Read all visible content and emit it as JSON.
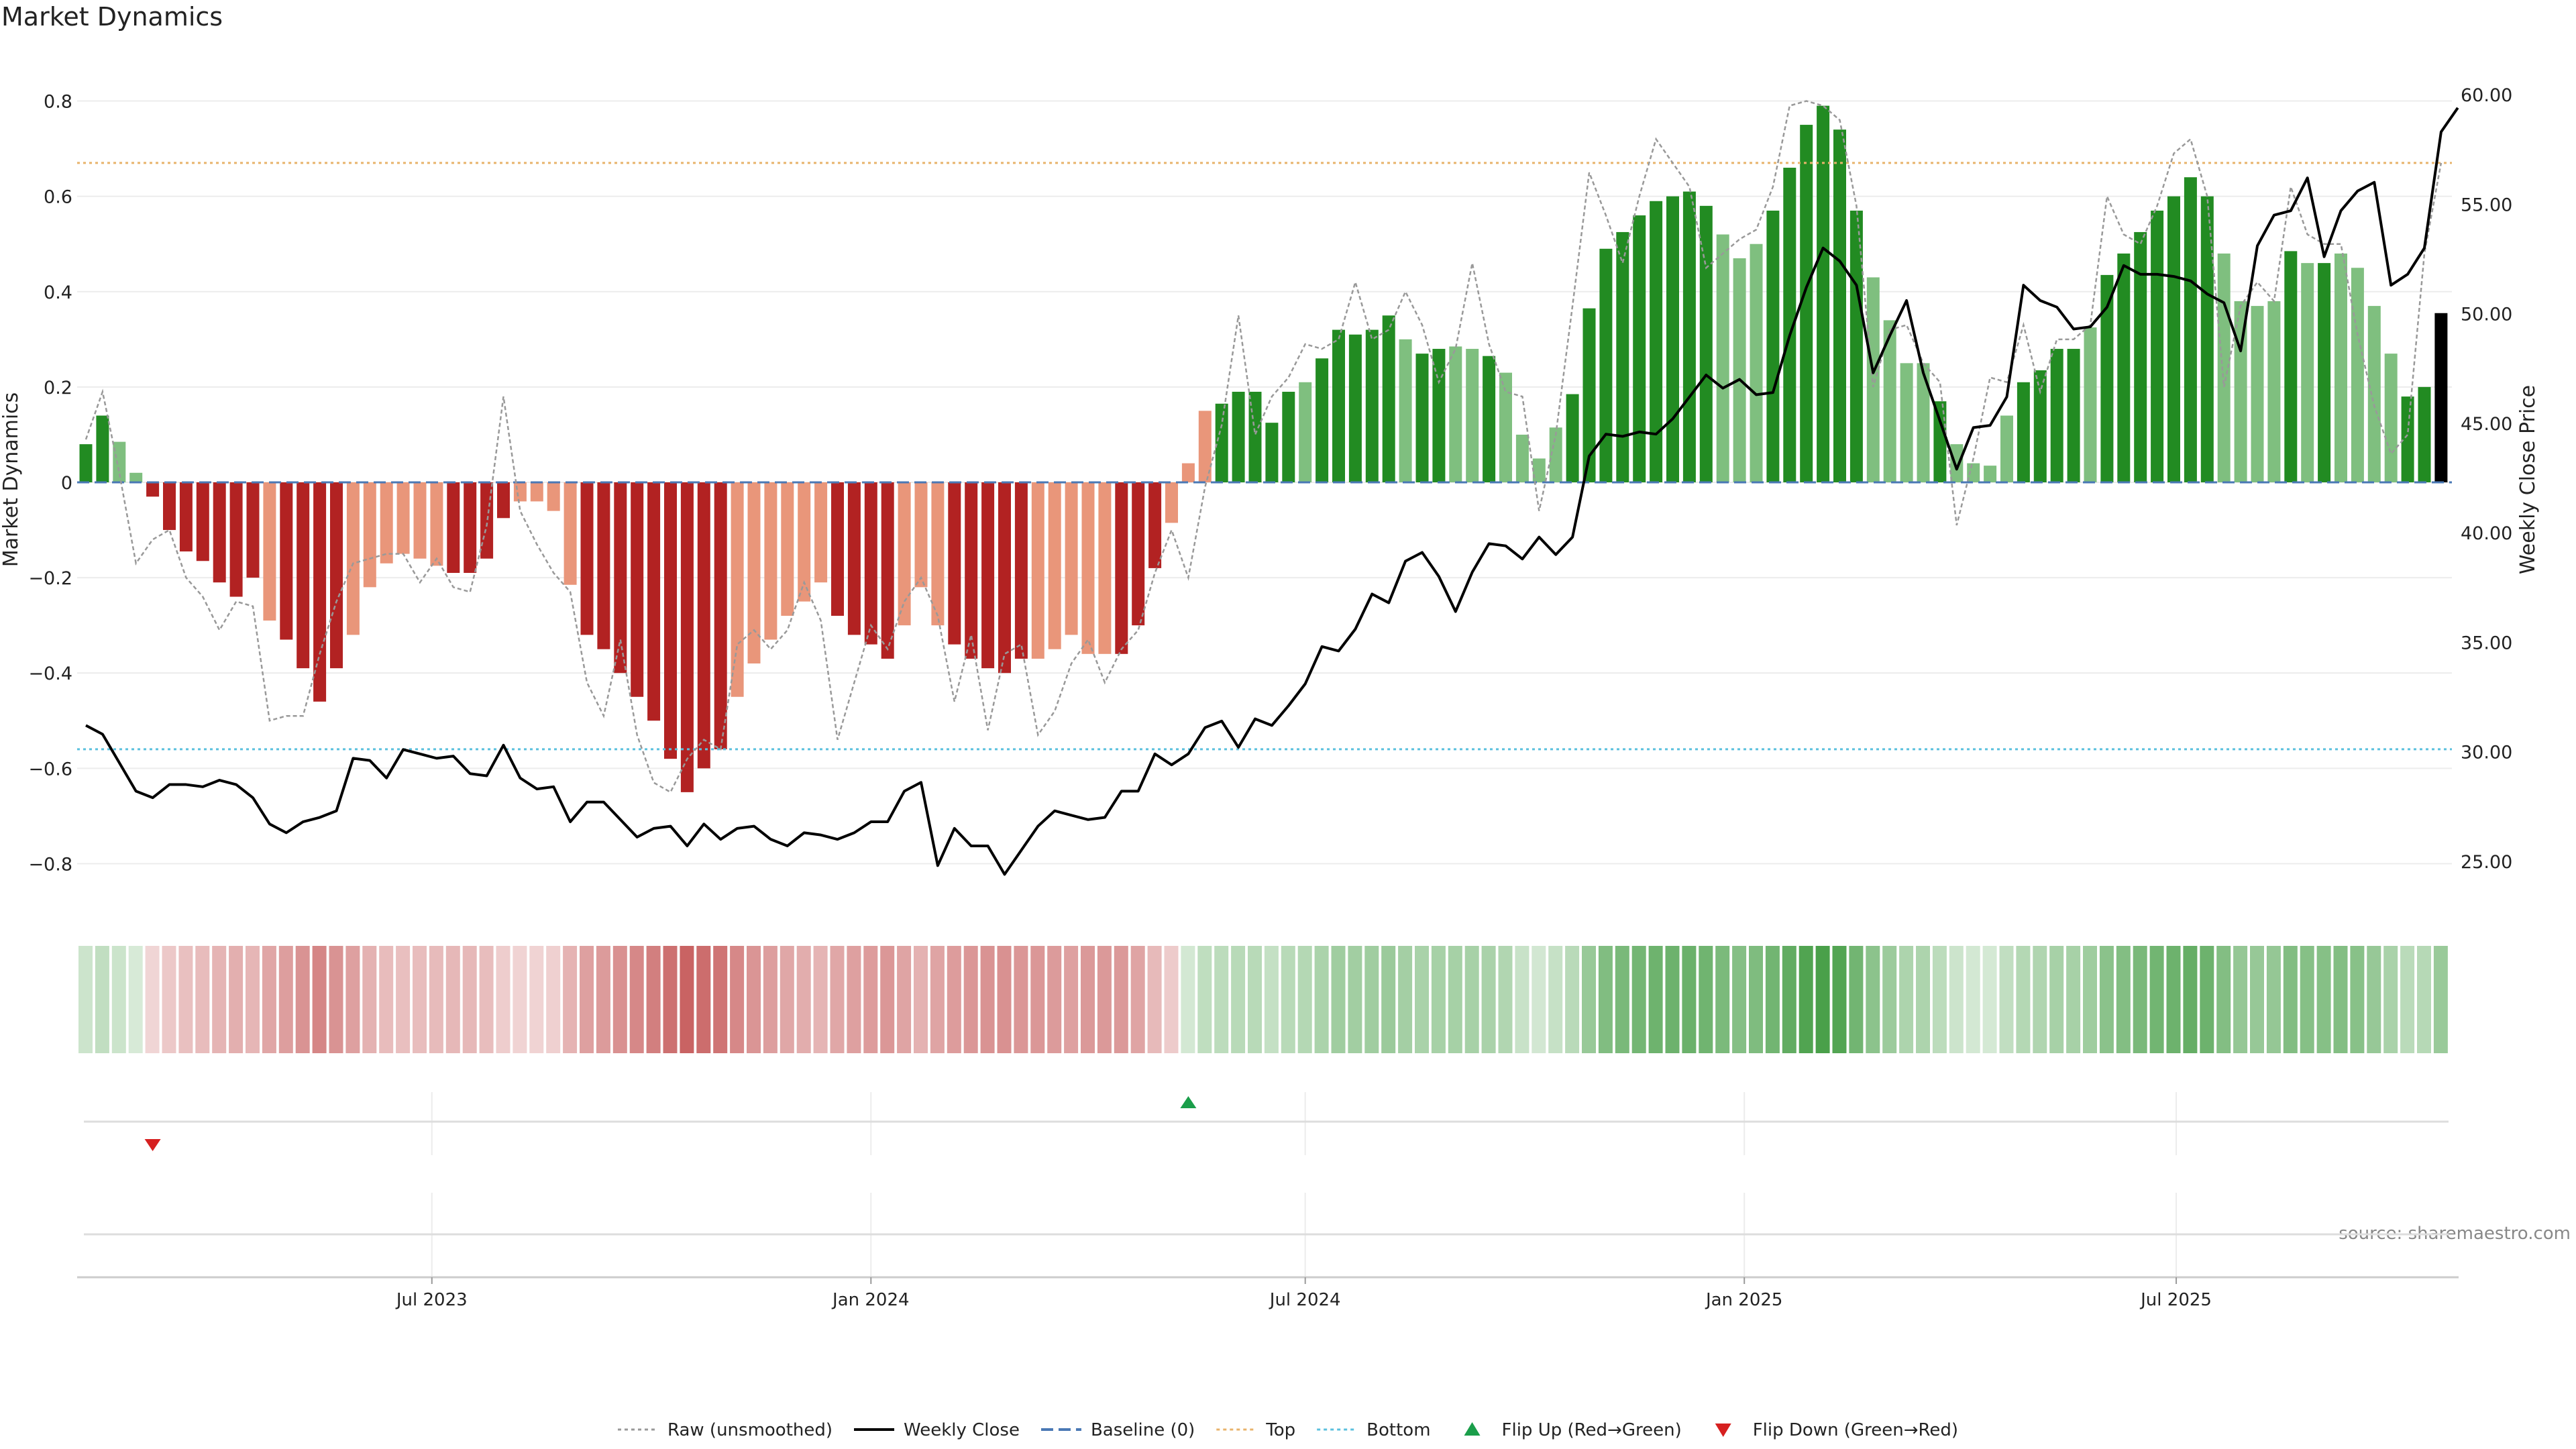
{
  "title": "Market Dynamics",
  "source": "source: sharemaestro.com",
  "colors": {
    "strong_green": "#228B22",
    "light_green": "#7fbf7f",
    "strong_red": "#b22222",
    "light_red": "#e9967a",
    "close_line": "#000000",
    "raw_line": "#999999",
    "baseline": "#4a78b5",
    "top_line": "#e8b36b",
    "bottom_line": "#5bc0de",
    "flip_up": "#1a9e4a",
    "flip_down": "#d62020"
  },
  "chart_data": {
    "type": "bar",
    "x_start": "2023-02-06",
    "x_step_days": 7,
    "x_ticks": [
      "Jul 2023",
      "Jan 2024",
      "Jul 2024",
      "Jan 2025",
      "Jul 2025"
    ],
    "x_tick_dates": [
      "2023-07-01",
      "2024-01-01",
      "2024-07-01",
      "2025-01-01",
      "2025-07-01"
    ],
    "left_axis": {
      "label": "Market Dynamics",
      "range": [
        -0.85,
        0.85
      ],
      "ticks": [
        -0.8,
        -0.6,
        -0.4,
        -0.2,
        0,
        0.2,
        0.4,
        0.6,
        0.8
      ],
      "tick_labels": [
        "−0.8",
        "−0.6",
        "−0.4",
        "−0.2",
        "0",
        "0.2",
        "0.4",
        "0.6",
        "0.8"
      ]
    },
    "right_axis": {
      "label": "Weekly Close Price",
      "range": [
        23.8,
        60.8
      ],
      "ticks": [
        25,
        30,
        35,
        40,
        45,
        50,
        55,
        60
      ],
      "tick_labels": [
        "25.00",
        "30.00",
        "35.00",
        "40.00",
        "45.00",
        "50.00",
        "55.00",
        "60.00"
      ]
    },
    "top_level": 0.67,
    "bottom_level": -0.56,
    "bar_color_codes": [
      "G",
      "G",
      "g",
      "g",
      "R",
      "R",
      "R",
      "R",
      "R",
      "R",
      "R",
      "r",
      "R",
      "R",
      "R",
      "R",
      "r",
      "r",
      "r",
      "r",
      "r",
      "r",
      "R",
      "R",
      "R",
      "R",
      "r",
      "r",
      "r",
      "r",
      "R",
      "R",
      "R",
      "R",
      "R",
      "R",
      "R",
      "R",
      "R",
      "r",
      "r",
      "r",
      "r",
      "r",
      "r",
      "R",
      "R",
      "R",
      "R",
      "r",
      "r",
      "r",
      "R",
      "R",
      "R",
      "R",
      "R",
      "r",
      "r",
      "r",
      "r",
      "r",
      "R",
      "R",
      "R",
      "r",
      "r",
      "r",
      "G",
      "G",
      "G",
      "G",
      "G",
      "g",
      "G",
      "G",
      "G",
      "G",
      "G",
      "g",
      "G",
      "G",
      "g",
      "g",
      "G",
      "g",
      "g",
      "g",
      "g",
      "G",
      "G",
      "G",
      "G",
      "G",
      "G",
      "G",
      "G",
      "G",
      "g",
      "g",
      "g",
      "G",
      "G",
      "G",
      "G",
      "G",
      "G",
      "g",
      "g",
      "g",
      "g",
      "G",
      "g",
      "g",
      "g",
      "g",
      "G",
      "G",
      "G",
      "G",
      "g",
      "G",
      "G",
      "G",
      "G",
      "G",
      "G",
      "G",
      "g",
      "g",
      "g",
      "g",
      "G",
      "g",
      "G",
      "g",
      "g",
      "g",
      "g",
      "G",
      "G"
    ],
    "bars": [
      0.08,
      0.14,
      0.085,
      0.02,
      -0.03,
      -0.1,
      -0.145,
      -0.165,
      -0.21,
      -0.24,
      -0.2,
      -0.29,
      -0.33,
      -0.39,
      -0.46,
      -0.39,
      -0.32,
      -0.22,
      -0.17,
      -0.15,
      -0.16,
      -0.175,
      -0.19,
      -0.19,
      -0.16,
      -0.075,
      -0.04,
      -0.04,
      -0.06,
      -0.215,
      -0.32,
      -0.35,
      -0.4,
      -0.45,
      -0.5,
      -0.58,
      -0.65,
      -0.6,
      -0.56,
      -0.45,
      -0.38,
      -0.33,
      -0.28,
      -0.25,
      -0.21,
      -0.28,
      -0.32,
      -0.34,
      -0.37,
      -0.3,
      -0.22,
      -0.3,
      -0.34,
      -0.37,
      -0.39,
      -0.4,
      -0.37,
      -0.37,
      -0.35,
      -0.32,
      -0.36,
      -0.36,
      -0.36,
      -0.3,
      -0.18,
      -0.085,
      0.04,
      0.15,
      0.165,
      0.19,
      0.19,
      0.125,
      0.19,
      0.21,
      0.26,
      0.32,
      0.31,
      0.32,
      0.35,
      0.3,
      0.27,
      0.28,
      0.285,
      0.28,
      0.265,
      0.23,
      0.1,
      0.05,
      0.115,
      0.185,
      0.365,
      0.49,
      0.525,
      0.56,
      0.59,
      0.6,
      0.61,
      0.58,
      0.52,
      0.47,
      0.5,
      0.57,
      0.66,
      0.75,
      0.79,
      0.74,
      0.57,
      0.43,
      0.34,
      0.25,
      0.25,
      0.17,
      0.08,
      0.04,
      0.035,
      0.14,
      0.21,
      0.235,
      0.28,
      0.28,
      0.325,
      0.435,
      0.48,
      0.525,
      0.57,
      0.6,
      0.64,
      0.6,
      0.48,
      0.38,
      0.37,
      0.38,
      0.485,
      0.46,
      0.46,
      0.48,
      0.45,
      0.37,
      0.27,
      0.18,
      0.2,
      0.355
    ],
    "series": [
      {
        "name": "Raw (unsmoothed)",
        "axis": "left",
        "values": [
          0.09,
          0.19,
          0.02,
          -0.17,
          -0.12,
          -0.1,
          -0.2,
          -0.24,
          -0.31,
          -0.25,
          -0.26,
          -0.5,
          -0.49,
          -0.49,
          -0.36,
          -0.25,
          -0.17,
          -0.16,
          -0.15,
          -0.15,
          -0.21,
          -0.16,
          -0.22,
          -0.23,
          -0.09,
          0.18,
          -0.06,
          -0.13,
          -0.19,
          -0.23,
          -0.42,
          -0.49,
          -0.33,
          -0.53,
          -0.63,
          -0.65,
          -0.58,
          -0.54,
          -0.56,
          -0.34,
          -0.31,
          -0.35,
          -0.31,
          -0.21,
          -0.29,
          -0.54,
          -0.42,
          -0.3,
          -0.35,
          -0.25,
          -0.2,
          -0.28,
          -0.46,
          -0.32,
          -0.52,
          -0.36,
          -0.34,
          -0.53,
          -0.48,
          -0.38,
          -0.33,
          -0.42,
          -0.35,
          -0.31,
          -0.19,
          -0.1,
          -0.2,
          -0.01,
          0.12,
          0.35,
          0.1,
          0.18,
          0.22,
          0.29,
          0.28,
          0.3,
          0.42,
          0.3,
          0.32,
          0.4,
          0.33,
          0.21,
          0.28,
          0.46,
          0.29,
          0.19,
          0.18,
          -0.06,
          0.1,
          0.37,
          0.65,
          0.56,
          0.46,
          0.6,
          0.72,
          0.67,
          0.62,
          0.45,
          0.48,
          0.51,
          0.53,
          0.62,
          0.79,
          0.8,
          0.79,
          0.76,
          0.58,
          0.2,
          0.32,
          0.33,
          0.25,
          0.21,
          -0.09,
          0.05,
          0.22,
          0.21,
          0.33,
          0.19,
          0.3,
          0.3,
          0.33,
          0.6,
          0.52,
          0.5,
          0.58,
          0.69,
          0.72,
          0.6,
          0.2,
          0.37,
          0.42,
          0.38,
          0.62,
          0.52,
          0.5,
          0.5,
          0.31,
          0.16,
          0.06,
          0.1,
          0.48,
          0.67
        ]
      },
      {
        "name": "Weekly Close",
        "axis": "right",
        "values": [
          31.2,
          30.8,
          29.5,
          28.2,
          27.9,
          28.5,
          28.5,
          28.4,
          28.7,
          28.5,
          27.9,
          26.7,
          26.3,
          26.8,
          27.0,
          27.3,
          29.7,
          29.6,
          28.8,
          30.1,
          29.9,
          29.7,
          29.8,
          29.0,
          28.9,
          30.3,
          28.8,
          28.3,
          28.4,
          26.8,
          27.7,
          27.7,
          26.9,
          26.1,
          26.5,
          26.6,
          25.7,
          26.7,
          26.0,
          26.5,
          26.6,
          26.0,
          25.7,
          26.3,
          26.2,
          26.0,
          26.3,
          26.8,
          26.8,
          28.2,
          28.6,
          24.8,
          26.5,
          25.7,
          25.7,
          24.4,
          25.5,
          26.6,
          27.3,
          27.1,
          26.9,
          27.0,
          28.2,
          28.2,
          29.9,
          29.4,
          29.9,
          31.1,
          31.4,
          30.2,
          31.5,
          31.2,
          32.1,
          33.1,
          34.8,
          34.6,
          35.6,
          37.2,
          36.8,
          38.7,
          39.1,
          38.0,
          36.4,
          38.2,
          39.5,
          39.4,
          38.8,
          39.8,
          39.0,
          39.8,
          43.5,
          44.5,
          44.4,
          44.6,
          44.5,
          45.2,
          46.2,
          47.2,
          46.6,
          47.0,
          46.3,
          46.4,
          49.0,
          51.2,
          53.0,
          52.4,
          51.3,
          47.3,
          49.0,
          50.6,
          47.3,
          45.1,
          42.9,
          44.8,
          44.9,
          46.2,
          51.3,
          50.6,
          50.3,
          49.3,
          49.4,
          50.3,
          52.2,
          51.8,
          51.8,
          51.7,
          51.5,
          50.9,
          50.5,
          48.3,
          53.1,
          54.5,
          54.7,
          56.2,
          52.6,
          54.7,
          55.6,
          56.0,
          51.3,
          51.8,
          53.0,
          58.3,
          59.4
        ]
      }
    ],
    "baseline_value": 0,
    "flips": {
      "up": [
        66
      ],
      "down": [
        4
      ]
    },
    "legend_position": "bottom-center",
    "legend": [
      {
        "label": "Raw (unsmoothed)",
        "kind": "dotted",
        "color": "#999999"
      },
      {
        "label": "Weekly Close",
        "kind": "solid",
        "color": "#000000"
      },
      {
        "label": "Baseline (0)",
        "kind": "dashed",
        "color": "#4a78b5"
      },
      {
        "label": "Top",
        "kind": "dotted",
        "color": "#e8b36b"
      },
      {
        "label": "Bottom",
        "kind": "dotted",
        "color": "#5bc0de"
      },
      {
        "label": "Flip Up (Red→Green)",
        "kind": "tri-up",
        "color": "#1a9e4a"
      },
      {
        "label": "Flip Down (Green→Red)",
        "kind": "tri-down",
        "color": "#d62020"
      }
    ]
  }
}
